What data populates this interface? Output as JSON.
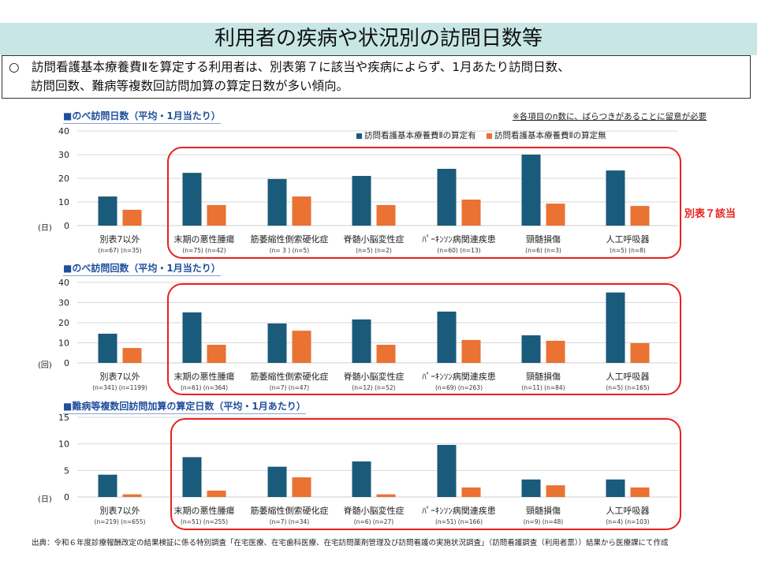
{
  "header": {
    "title": "利用者の疾病や状況別の訪問日数等",
    "summary_line1": "○　訪問看護基本療養費Ⅱを算定する利用者は、別表第７に該当や疾病によらず、1月あたり訪問日数、",
    "summary_line2": "訪問回数、難病等複数回訪問加算の算定日数が多い傾向。"
  },
  "note": "※各項目のn数に、ばらつきがあることに留意が必要",
  "side_label": "別表７該当",
  "legend": {
    "with": "訪問看護基本療養費Ⅱの算定有",
    "without": "訪問看護基本療養費Ⅱの算定無"
  },
  "colors": {
    "with": "#1a5a7a",
    "without": "#ea7232",
    "highlight": "#e8211d",
    "grid": "#d9d9d9"
  },
  "source": "出典：令和６年度診療報酬改定の結果検証に係る特別調査「在宅医療、在宅歯科医療、在宅訪問薬剤管理及び訪問看護の実施状況調査」（訪問看護調査（利用者票））結果から医療課にて作成",
  "chart_data": [
    {
      "type": "bar",
      "title": "■のべ訪問日数（平均・1月当たり）",
      "ylabel": "(日)",
      "ylim": [
        0,
        40
      ],
      "yticks": [
        "0",
        "10",
        "20",
        "30",
        "40"
      ],
      "grid": true,
      "legend_position": "top-right",
      "categories": [
        "別表7以外",
        "末期の悪性腫瘍",
        "筋萎縮性側索硬化症",
        "脊髄小脳変性症",
        "ﾊﾟｰｷﾝｿﾝ病関連疾患",
        "頸髄損傷",
        "人工呼吸器"
      ],
      "n_labels": [
        "(n=67)  (n=35)",
        "(n=75)  (n=42)",
        "(n= 3 )    (n=5)",
        "(n=5)     (n=2)",
        "(n=60)  (n=13)",
        "(n=6)     (n=3)",
        "(n=5)     (n=8)"
      ],
      "series": [
        {
          "name": "訪問看護基本療養費Ⅱの算定有",
          "values": [
            12.3,
            22.3,
            19.7,
            21.0,
            24.0,
            30.0,
            23.3
          ]
        },
        {
          "name": "訪問看護基本療養費Ⅱの算定無",
          "values": [
            6.7,
            8.7,
            12.3,
            8.7,
            11.0,
            9.3,
            8.3
          ]
        }
      ]
    },
    {
      "type": "bar",
      "title": "■のべ訪問回数（平均・1月当たり）",
      "ylabel": "(回)",
      "ylim": [
        0,
        40
      ],
      "yticks": [
        "0",
        "10",
        "20",
        "30",
        "40"
      ],
      "grid": true,
      "categories": [
        "別表7以外",
        "末期の悪性腫瘍",
        "筋萎縮性側索硬化症",
        "脊髄小脳変性症",
        "ﾊﾟｰｷﾝｿﾝ病関連疾患",
        "頸髄損傷",
        "人工呼吸器"
      ],
      "n_labels": [
        "(n=341)  (n=1199)",
        "(n=61)  (n=364)",
        "(n=7)  (n=47)",
        "(n=12)  (n=52)",
        "(n=69)   (n=263)",
        "(n=11)   (n=84)",
        "(n=5)   (n=165)"
      ],
      "series": [
        {
          "name": "訪問看護基本療養費Ⅱの算定有",
          "values": [
            14.5,
            25.1,
            19.6,
            21.6,
            25.5,
            13.7,
            35.0
          ]
        },
        {
          "name": "訪問看護基本療養費Ⅱの算定無",
          "values": [
            7.4,
            9.0,
            16.0,
            9.0,
            11.4,
            11.0,
            9.8
          ]
        }
      ]
    },
    {
      "type": "bar",
      "title": "■難病等複数回訪問加算の算定日数（平均・1月あたり）",
      "ylabel": "(日)",
      "ylim": [
        0,
        15
      ],
      "yticks": [
        "0",
        "5",
        "10",
        "15"
      ],
      "grid": true,
      "categories": [
        "別表7以外",
        "末期の悪性腫瘍",
        "筋萎縮性側索硬化症",
        "脊髄小脳変性症",
        "ﾊﾟｰｷﾝｿﾝ病関連疾患",
        "頸髄損傷",
        "人工呼吸器"
      ],
      "n_labels": [
        "(n=219)  (n=655)",
        "(n=51)  (n=255)",
        "(n=7)  (n=34)",
        "(n=6)  (n=27)",
        "(n=51)   (n=166)",
        "(n=9)   (n=48)",
        "(n=4)   (n=103)"
      ],
      "series": [
        {
          "name": "訪問看護基本療養費Ⅱの算定有",
          "values": [
            4.2,
            7.5,
            5.7,
            6.7,
            9.8,
            3.3,
            3.3
          ]
        },
        {
          "name": "訪問看護基本療養費Ⅱの算定無",
          "values": [
            0.5,
            1.2,
            3.7,
            0.5,
            1.8,
            2.2,
            1.8
          ]
        }
      ]
    }
  ]
}
